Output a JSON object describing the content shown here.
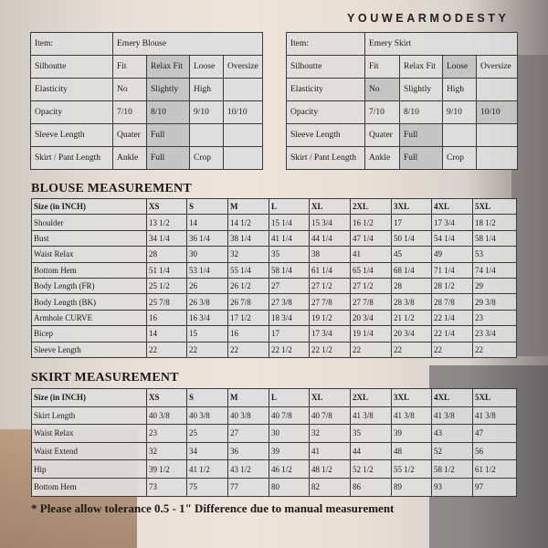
{
  "brand": "YOUWEARMODESTY",
  "blouse_spec": {
    "item_label": "Item:",
    "item_name": "Emery Blouse",
    "rows": [
      {
        "label": "Silhoutte",
        "cells": [
          "Fit",
          "Relax Fit",
          "Loose",
          "Oversize"
        ],
        "selected": 1
      },
      {
        "label": "Elasticity",
        "cells": [
          "No",
          "Slightly",
          "High",
          ""
        ],
        "selected": 1
      },
      {
        "label": "Opacity",
        "cells": [
          "7/10",
          "8/10",
          "9/10",
          "10/10"
        ],
        "selected": 1
      },
      {
        "label": "Sleeve Length",
        "cells": [
          "Quater",
          "Full",
          "",
          ""
        ],
        "selected": 1
      },
      {
        "label": "Skirt / Pant Length",
        "cells": [
          "Ankle",
          "Full",
          "Crop",
          ""
        ],
        "selected": 1
      }
    ]
  },
  "skirt_spec": {
    "item_label": "Item:",
    "item_name": "Emery Skirt",
    "rows": [
      {
        "label": "Silhoutte",
        "cells": [
          "Fit",
          "Relax Fit",
          "Loose",
          "Oversize"
        ],
        "selected": 2
      },
      {
        "label": "Elasticity",
        "cells": [
          "No",
          "Slightly",
          "High",
          ""
        ],
        "selected": 0
      },
      {
        "label": "Opacity",
        "cells": [
          "7/10",
          "8/10",
          "9/10",
          "10/10"
        ],
        "selected": 3
      },
      {
        "label": "Sleeve Length",
        "cells": [
          "Quater",
          "Full",
          "",
          ""
        ],
        "selected": 1
      },
      {
        "label": "Skirt / Pant Length",
        "cells": [
          "Ankle",
          "Full",
          "Crop",
          ""
        ],
        "selected": 1
      }
    ]
  },
  "highlight_color": "#c4c4c4",
  "blouse_measurement": {
    "title": "BLOUSE MEASUREMENT",
    "header": [
      "Size (in INCH)",
      "XS",
      "S",
      "M",
      "L",
      "XL",
      "2XL",
      "3XL",
      "4XL",
      "5XL"
    ],
    "rows": [
      [
        "Shoulder",
        "13 1/2",
        "14",
        "14 1/2",
        "15 1/4",
        "15 3/4",
        "16 1/2",
        "17",
        "17 3/4",
        "18 1/2"
      ],
      [
        "Bust",
        "34 1/4",
        "36 1/4",
        "38 1/4",
        "41 1/4",
        "44 1/4",
        "47 1/4",
        "50 1/4",
        "54 1/4",
        "58 1/4"
      ],
      [
        "Waist Relax",
        "28",
        "30",
        "32",
        "35",
        "38",
        "41",
        "45",
        "49",
        "53"
      ],
      [
        "Bottom Hem",
        "51 1/4",
        "53 1/4",
        "55 1/4",
        "58 1/4",
        "61 1/4",
        "65 1/4",
        "68 1/4",
        "71 1/4",
        "74 1/4"
      ],
      [
        "Body Length (FR)",
        "25 1/2",
        "26",
        "26 1/2",
        "27",
        "27 1/2",
        "27 1/2",
        "28",
        "28 1/2",
        "29"
      ],
      [
        "Body Length (BK)",
        "25 7/8",
        "26 3/8",
        "26 7/8",
        "27 3/8",
        "27 7/8",
        "27 7/8",
        "28 3/8",
        "28 7/8",
        "29 3/8"
      ],
      [
        "Armhole CURVE",
        "16",
        "16 3/4",
        "17 1/2",
        "18 3/4",
        "19 1/2",
        "20 3/4",
        "21 1/2",
        "22 1/4",
        "23"
      ],
      [
        "Bicep",
        "14",
        "15",
        "16",
        "17",
        "17 3/4",
        "19 1/4",
        "20 3/4",
        "22 1/4",
        "23 3/4"
      ],
      [
        "Sleeve Length",
        "22",
        "22",
        "22",
        "22 1/2",
        "22 1/2",
        "22",
        "22",
        "22",
        "22"
      ]
    ]
  },
  "skirt_measurement": {
    "title": "SKIRT MEASUREMENT",
    "header": [
      "Size (in INCH)",
      "XS",
      "S",
      "M",
      "L",
      "XL",
      "2XL",
      "3XL",
      "4XL",
      "5XL"
    ],
    "rows": [
      [
        "Skirt Length",
        "40 3/8",
        "40 3/8",
        "40 3/8",
        "40 7/8",
        "40 7/8",
        "41 3/8",
        "41 3/8",
        "41 3/8",
        "41 3/8"
      ],
      [
        "Waist Relax",
        "23",
        "25",
        "27",
        "30",
        "32",
        "35",
        "39",
        "43",
        "47"
      ],
      [
        "Waist Extend",
        "32",
        "34",
        "36",
        "39",
        "41",
        "44",
        "48",
        "52",
        "56"
      ],
      [
        "Hip",
        "39 1/2",
        "41 1/2",
        "43 1/2",
        "46 1/2",
        "48 1/2",
        "52 1/2",
        "55 1/2",
        "58 1/2",
        "61 1/2"
      ],
      [
        "Bottom Hem",
        "73",
        "75",
        "77",
        "80",
        "82",
        "86",
        "89",
        "93",
        "97"
      ]
    ]
  },
  "note": "* Please allow tolerance 0.5 - 1\" Difference due to manual measurement"
}
